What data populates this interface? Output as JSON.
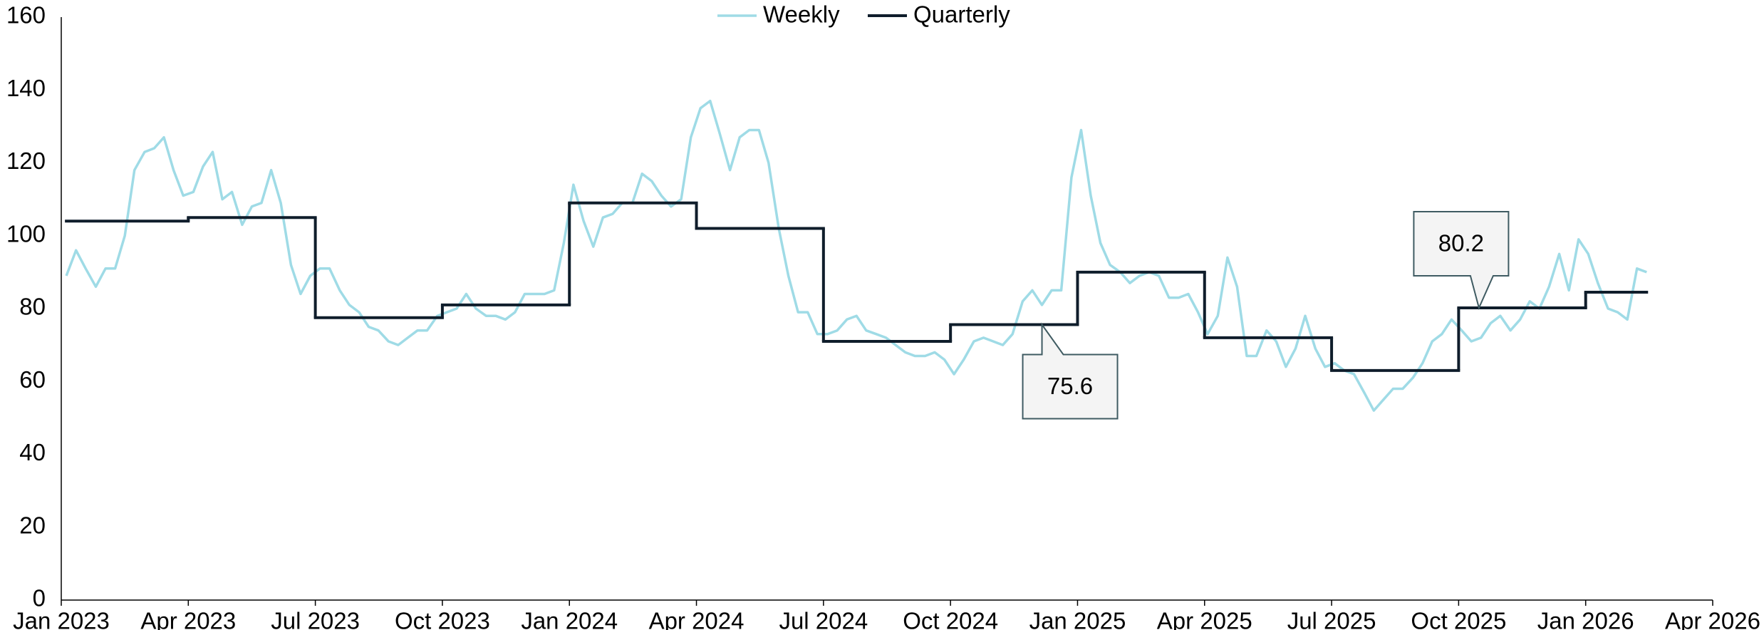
{
  "chart_data": {
    "type": "line",
    "xlim": [
      2023.0,
      2026.25
    ],
    "xticks": [
      {
        "value": 2023.0,
        "label": "Jan 2023"
      },
      {
        "value": 2023.25,
        "label": "Apr 2023"
      },
      {
        "value": 2023.5,
        "label": "Jul 2023"
      },
      {
        "value": 2023.75,
        "label": "Oct 2023"
      },
      {
        "value": 2024.0,
        "label": "Jan 2024"
      },
      {
        "value": 2024.25,
        "label": "Apr 2024"
      },
      {
        "value": 2024.5,
        "label": "Jul 2024"
      },
      {
        "value": 2024.75,
        "label": "Oct 2024"
      },
      {
        "value": 2025.0,
        "label": "Jan 2025"
      },
      {
        "value": 2025.25,
        "label": "Apr 2025"
      },
      {
        "value": 2025.5,
        "label": "Jul 2025"
      },
      {
        "value": 2025.75,
        "label": "Oct 2025"
      },
      {
        "value": 2026.0,
        "label": "Jan 2026"
      },
      {
        "value": 2026.25,
        "label": "Apr 2026"
      }
    ],
    "ylim": [
      0,
      160
    ],
    "yticks": [
      0,
      20,
      40,
      60,
      80,
      100,
      120,
      140,
      160
    ],
    "legend": "top",
    "series": [
      {
        "name": "Weekly",
        "color": "#9fdbe6",
        "style": "line",
        "x": [
          2023.01,
          2023.029,
          2023.048,
          2023.068,
          2023.087,
          2023.106,
          2023.125,
          2023.144,
          2023.164,
          2023.183,
          2023.202,
          2023.221,
          2023.24,
          2023.26,
          2023.279,
          2023.298,
          2023.317,
          2023.336,
          2023.356,
          2023.375,
          2023.394,
          2023.413,
          2023.432,
          2023.452,
          2023.471,
          2023.49,
          2023.509,
          2023.528,
          2023.548,
          2023.567,
          2023.586,
          2023.605,
          2023.624,
          2023.644,
          2023.663,
          2023.682,
          2023.701,
          2023.72,
          2023.74,
          2023.759,
          2023.778,
          2023.797,
          2023.816,
          2023.836,
          2023.855,
          2023.874,
          2023.893,
          2023.912,
          2023.932,
          2023.951,
          2023.97,
          2023.989,
          2024.008,
          2024.028,
          2024.047,
          2024.066,
          2024.085,
          2024.104,
          2024.124,
          2024.143,
          2024.162,
          2024.181,
          2024.2,
          2024.22,
          2024.239,
          2024.258,
          2024.277,
          2024.296,
          2024.316,
          2024.335,
          2024.354,
          2024.373,
          2024.392,
          2024.412,
          2024.431,
          2024.45,
          2024.469,
          2024.488,
          2024.508,
          2024.527,
          2024.546,
          2024.565,
          2024.584,
          2024.604,
          2024.623,
          2024.642,
          2024.661,
          2024.68,
          2024.7,
          2024.719,
          2024.738,
          2024.757,
          2024.776,
          2024.796,
          2024.815,
          2024.834,
          2024.853,
          2024.872,
          2024.892,
          2024.911,
          2024.93,
          2024.949,
          2024.968,
          2024.988,
          2025.007,
          2025.026,
          2025.045,
          2025.064,
          2025.084,
          2025.103,
          2025.122,
          2025.141,
          2025.16,
          2025.18,
          2025.199,
          2025.218,
          2025.237,
          2025.256,
          2025.276,
          2025.295,
          2025.314,
          2025.333,
          2025.352,
          2025.372,
          2025.391,
          2025.41,
          2025.429,
          2025.448,
          2025.468,
          2025.487,
          2025.506,
          2025.525,
          2025.544,
          2025.564,
          2025.583,
          2025.602,
          2025.621,
          2025.64,
          2025.66,
          2025.679,
          2025.698,
          2025.717,
          2025.736,
          2025.756,
          2025.775,
          2025.794,
          2025.813,
          2025.832,
          2025.852,
          2025.871,
          2025.89,
          2025.909,
          2025.928,
          2025.948,
          2025.967,
          2025.986,
          2026.005,
          2026.024,
          2026.044,
          2026.063,
          2026.082,
          2026.101,
          2026.12
        ],
        "values": [
          89,
          96,
          91,
          86,
          91,
          91,
          100,
          118,
          123,
          124,
          127,
          118,
          111,
          112,
          119,
          123,
          110,
          112,
          103,
          108,
          109,
          118,
          109,
          92,
          84,
          89,
          91,
          91,
          85,
          81,
          79,
          75,
          74,
          71,
          70,
          72,
          74,
          74,
          78,
          79,
          80,
          84,
          80,
          78,
          78,
          77,
          79,
          84,
          84,
          84,
          85,
          98,
          114,
          104,
          97,
          105,
          106,
          109,
          109,
          117,
          115,
          111,
          108,
          110,
          127,
          135,
          137,
          128,
          118,
          127,
          129,
          129,
          120,
          102,
          89,
          79,
          79,
          73,
          73,
          74,
          77,
          78,
          74,
          73,
          72,
          70,
          68,
          67,
          67,
          68,
          66,
          62,
          66,
          71,
          72,
          71,
          70,
          73,
          82,
          85,
          81,
          85,
          85,
          116,
          129,
          111,
          98,
          92,
          90,
          87,
          89,
          90,
          89,
          83,
          83,
          84,
          79,
          73,
          78,
          94,
          86,
          67,
          67,
          74,
          71,
          64,
          69,
          78,
          69,
          64,
          65,
          63,
          62,
          57,
          52,
          55,
          58,
          58,
          61,
          65,
          71,
          73,
          77,
          74,
          71,
          72,
          76,
          78,
          74,
          77,
          82,
          80,
          86,
          95,
          85,
          99,
          95,
          87,
          80,
          79,
          77,
          91,
          90
        ]
      },
      {
        "name": "Quarterly",
        "color": "#0f1d2b",
        "style": "step",
        "x": [
          2023.01,
          2023.25,
          2023.5,
          2023.75,
          2024.0,
          2024.25,
          2024.5,
          2024.75,
          2025.0,
          2025.25,
          2025.5,
          2025.75,
          2026.0
        ],
        "x_end": 2026.12,
        "values": [
          104,
          105,
          77.5,
          81,
          109,
          102,
          71,
          75.6,
          90,
          72,
          63,
          80.2,
          84.5
        ]
      }
    ],
    "annotations": [
      {
        "label": "75.6",
        "x": 2024.93,
        "y": 75.6,
        "position": "below"
      },
      {
        "label": "80.2",
        "x": 2025.79,
        "y": 80.2,
        "position": "above"
      }
    ]
  }
}
